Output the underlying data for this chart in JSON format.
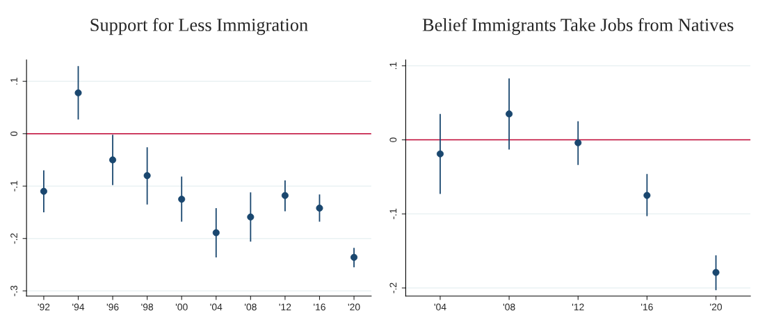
{
  "chart_data": [
    {
      "type": "scatter",
      "title": "Support for Less Immigration",
      "categories": [
        "'92",
        "'94",
        "'96",
        "'98",
        "'00",
        "'04",
        "'08",
        "'12",
        "'16",
        "'20"
      ],
      "series": [
        {
          "color": "#1a476f",
          "values": [
            -0.11,
            0.078,
            -0.05,
            -0.08,
            -0.125,
            -0.189,
            -0.159,
            -0.118,
            -0.142,
            -0.236
          ],
          "errors": [
            [
              -0.15,
              -0.07
            ],
            [
              0.027,
              0.129
            ],
            [
              -0.098,
              -0.002
            ],
            [
              -0.135,
              -0.026
            ],
            [
              -0.168,
              -0.082
            ],
            [
              -0.236,
              -0.142
            ],
            [
              -0.206,
              -0.112
            ],
            [
              -0.148,
              -0.089
            ],
            [
              -0.168,
              -0.116
            ],
            [
              -0.255,
              -0.218
            ]
          ]
        }
      ],
      "ylim": [
        -0.31,
        0.141
      ],
      "yticks": [
        {
          "value": -0.3,
          "label": "-.3"
        },
        {
          "value": -0.2,
          "label": "-.2"
        },
        {
          "value": -0.1,
          "label": "-.1"
        },
        0,
        {
          "value": 0.1,
          "label": ".1"
        }
      ],
      "ref_lines": [
        {
          "axis": "y",
          "value": 0,
          "color": "#c10534"
        }
      ],
      "grid": "y",
      "marker": "circle"
    },
    {
      "type": "scatter",
      "title": "Belief Immigrants Take Jobs from Natives",
      "categories": [
        "'04",
        "'08",
        "'12",
        "'16",
        "'20"
      ],
      "series": [
        {
          "color": "#1a476f",
          "values": [
            -0.019,
            0.035,
            -0.004,
            -0.075,
            -0.179
          ],
          "errors": [
            [
              -0.073,
              0.035
            ],
            [
              -0.013,
              0.083
            ],
            [
              -0.034,
              0.025
            ],
            [
              -0.103,
              -0.046
            ],
            [
              -0.203,
              -0.156
            ]
          ]
        }
      ],
      "ylim": [
        -0.211,
        0.108
      ],
      "yticks": [
        {
          "value": -0.2,
          "label": "-.2"
        },
        {
          "value": -0.1,
          "label": "-.1"
        },
        0,
        {
          "value": 0.1,
          "label": ".1"
        }
      ],
      "ref_lines": [
        {
          "axis": "y",
          "value": 0,
          "color": "#c10534"
        }
      ],
      "grid": "y",
      "marker": "circle"
    }
  ]
}
